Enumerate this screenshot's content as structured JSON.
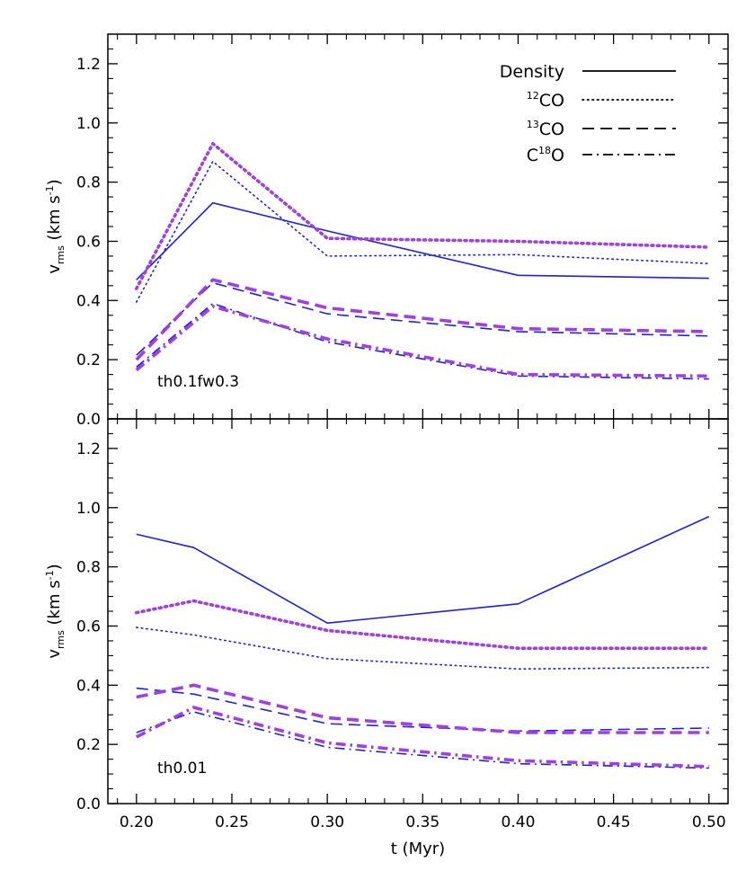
{
  "chart_data": [
    {
      "type": "line",
      "panel_label": "th0.1fw0.3",
      "ylabel": "v_rms (km s^-1)",
      "xlim": [
        0.185,
        0.51
      ],
      "ylim": [
        0.0,
        1.3
      ],
      "yticks": [
        "0.0",
        "0.2",
        "0.4",
        "0.6",
        "0.8",
        "1.0",
        "1.2"
      ],
      "legend": {
        "placement": "top-right",
        "entries": [
          {
            "label": "Density",
            "style": "solid"
          },
          {
            "label": "12CO",
            "sup": "12",
            "text": "CO",
            "style": "dotted"
          },
          {
            "label": "13CO",
            "sup": "13",
            "text": "CO",
            "style": "dashed"
          },
          {
            "label": "C18O",
            "pre": "C",
            "sup": "18",
            "text": "O",
            "style": "dashdot"
          }
        ]
      },
      "series": [
        {
          "name": "Density",
          "style": "solid",
          "color": "#1f1fdc",
          "thick": false,
          "x": [
            0.2,
            0.24,
            0.3,
            0.4,
            0.5
          ],
          "y": [
            0.47,
            0.73,
            0.635,
            0.485,
            0.475
          ]
        },
        {
          "name": "12CO",
          "style": "dotted",
          "color": "#1f1fdc",
          "thick": false,
          "x": [
            0.2,
            0.24,
            0.3,
            0.4,
            0.5
          ],
          "y": [
            0.395,
            0.87,
            0.55,
            0.555,
            0.525
          ]
        },
        {
          "name": "12CO",
          "style": "dotted",
          "color": "#a040e0",
          "thick": true,
          "x": [
            0.2,
            0.24,
            0.3,
            0.4,
            0.5
          ],
          "y": [
            0.44,
            0.93,
            0.61,
            0.6,
            0.58
          ]
        },
        {
          "name": "13CO",
          "style": "dashed",
          "color": "#1f1fdc",
          "thick": false,
          "x": [
            0.2,
            0.24,
            0.3,
            0.4,
            0.5
          ],
          "y": [
            0.215,
            0.46,
            0.355,
            0.295,
            0.28
          ]
        },
        {
          "name": "13CO",
          "style": "dashed",
          "color": "#a040e0",
          "thick": true,
          "x": [
            0.2,
            0.24,
            0.3,
            0.4,
            0.5
          ],
          "y": [
            0.2,
            0.47,
            0.375,
            0.305,
            0.295
          ]
        },
        {
          "name": "C18O",
          "style": "dashdot",
          "color": "#1f1fdc",
          "thick": false,
          "x": [
            0.2,
            0.24,
            0.3,
            0.4,
            0.5
          ],
          "y": [
            0.175,
            0.39,
            0.26,
            0.145,
            0.135
          ]
        },
        {
          "name": "C18O",
          "style": "dashdot",
          "color": "#a040e0",
          "thick": true,
          "x": [
            0.2,
            0.24,
            0.3,
            0.4,
            0.5
          ],
          "y": [
            0.165,
            0.38,
            0.27,
            0.15,
            0.145
          ]
        }
      ]
    },
    {
      "type": "line",
      "panel_label": "th0.01",
      "ylabel": "v_rms (km s^-1)",
      "xlabel": "t (Myr)",
      "xlim": [
        0.185,
        0.51
      ],
      "ylim": [
        0.0,
        1.3
      ],
      "xticks": [
        "0.20",
        "0.25",
        "0.30",
        "0.35",
        "0.40",
        "0.45",
        "0.50"
      ],
      "yticks": [
        "0.0",
        "0.2",
        "0.4",
        "0.6",
        "0.8",
        "1.0",
        "1.2"
      ],
      "series": [
        {
          "name": "Density",
          "style": "solid",
          "color": "#1f1fdc",
          "thick": false,
          "x": [
            0.2,
            0.23,
            0.3,
            0.4,
            0.5
          ],
          "y": [
            0.91,
            0.865,
            0.61,
            0.675,
            0.97
          ]
        },
        {
          "name": "12CO",
          "style": "dotted",
          "color": "#1f1fdc",
          "thick": false,
          "x": [
            0.2,
            0.23,
            0.3,
            0.4,
            0.5
          ],
          "y": [
            0.595,
            0.57,
            0.49,
            0.455,
            0.46
          ]
        },
        {
          "name": "12CO",
          "style": "dotted",
          "color": "#a040e0",
          "thick": true,
          "x": [
            0.2,
            0.23,
            0.3,
            0.4,
            0.5
          ],
          "y": [
            0.645,
            0.685,
            0.585,
            0.525,
            0.525
          ]
        },
        {
          "name": "13CO",
          "style": "dashed",
          "color": "#1f1fdc",
          "thick": false,
          "x": [
            0.2,
            0.23,
            0.3,
            0.4,
            0.5
          ],
          "y": [
            0.39,
            0.37,
            0.27,
            0.245,
            0.255
          ]
        },
        {
          "name": "13CO",
          "style": "dashed",
          "color": "#a040e0",
          "thick": true,
          "x": [
            0.2,
            0.23,
            0.3,
            0.4,
            0.5
          ],
          "y": [
            0.36,
            0.4,
            0.29,
            0.24,
            0.24
          ]
        },
        {
          "name": "C18O",
          "style": "dashdot",
          "color": "#1f1fdc",
          "thick": false,
          "x": [
            0.2,
            0.23,
            0.3,
            0.4,
            0.5
          ],
          "y": [
            0.24,
            0.31,
            0.19,
            0.135,
            0.12
          ]
        },
        {
          "name": "C18O",
          "style": "dashdot",
          "color": "#a040e0",
          "thick": true,
          "x": [
            0.2,
            0.23,
            0.3,
            0.4,
            0.5
          ],
          "y": [
            0.225,
            0.325,
            0.205,
            0.145,
            0.125
          ]
        }
      ]
    }
  ],
  "colors": {
    "blue": "#1f1fdc",
    "purple": "#a040e0",
    "axes": "#000000"
  }
}
